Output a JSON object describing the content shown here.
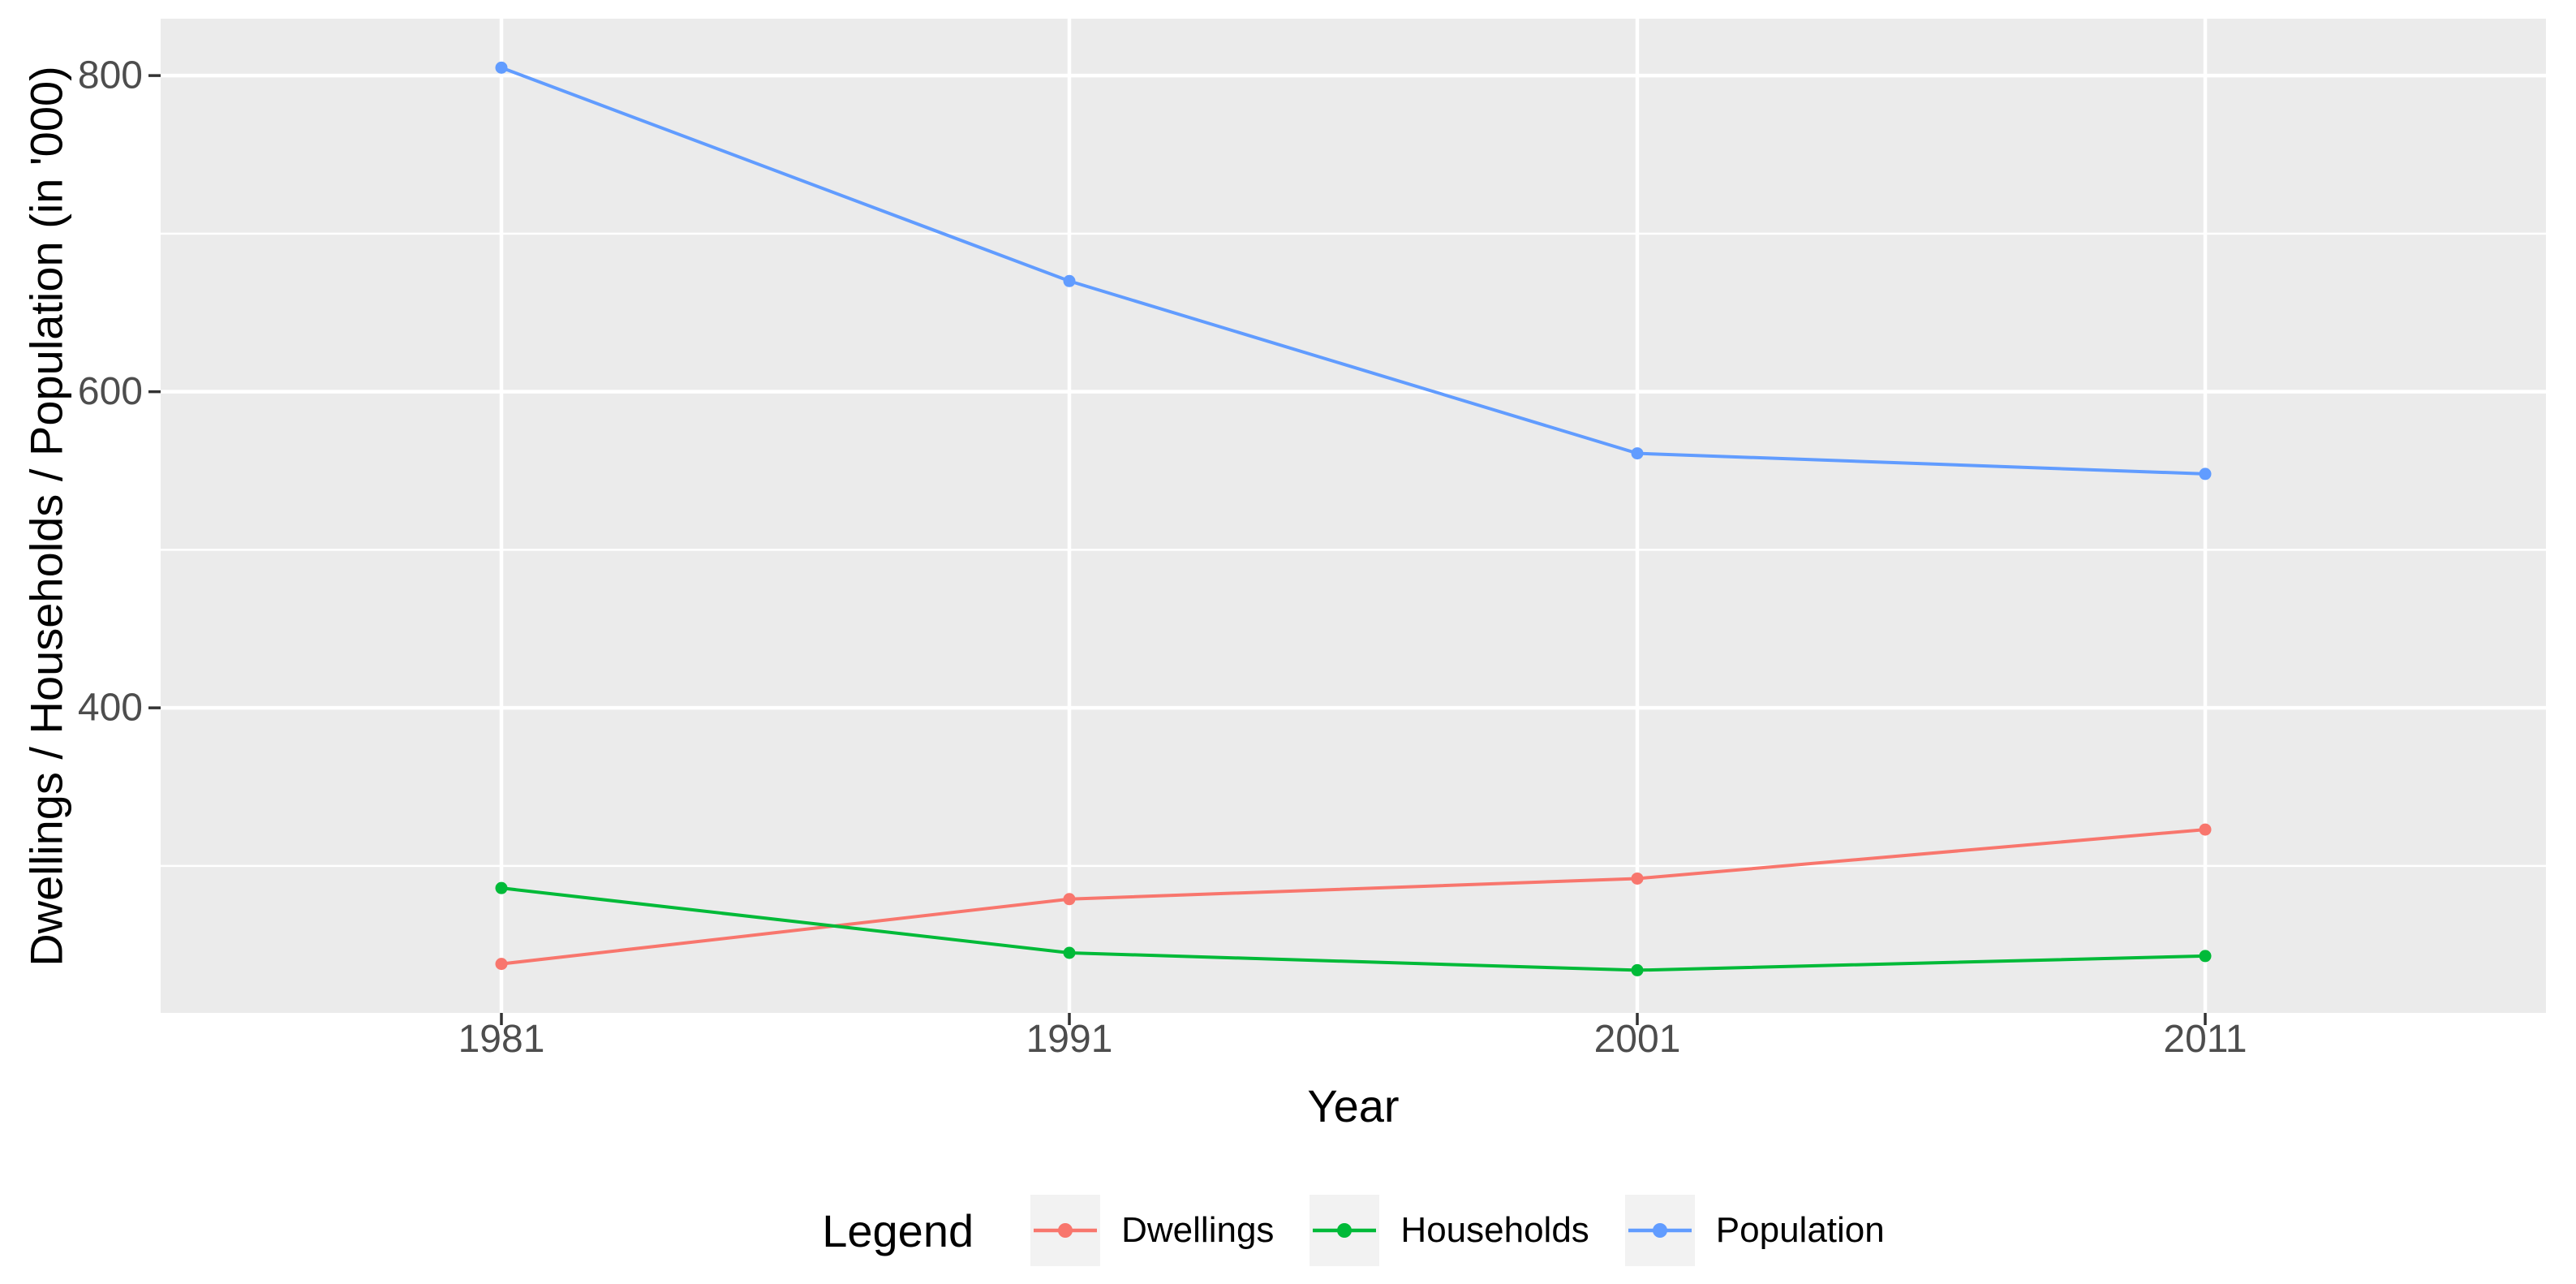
{
  "figure": {
    "y_axis_title": "Dwellings / Households / Population (in '000)",
    "x_axis_title": "Year"
  },
  "legend": {
    "title": "Legend",
    "items": [
      {
        "label": "Dwellings",
        "color": "#F8766D"
      },
      {
        "label": "Households",
        "color": "#00BA38"
      },
      {
        "label": "Population",
        "color": "#619CFF"
      }
    ]
  },
  "colors": {
    "panel_background": "#EBEBEB",
    "gridline": "#FFFFFF",
    "tick_mark": "#333333",
    "tick_text": "#4D4D4D",
    "legend_key_background": "#F2F2F2",
    "dwellings": "#F8766D",
    "households": "#00BA38",
    "population": "#619CFF"
  },
  "chart_data": {
    "type": "line",
    "title": "",
    "xlabel": "Year",
    "ylabel": "Dwellings / Households / Population (in '000)",
    "categories": [
      "1981",
      "1991",
      "2001",
      "2011"
    ],
    "series": [
      {
        "name": "Dwellings",
        "color": "#F8766D",
        "values": [
          238,
          279,
          292,
          323
        ]
      },
      {
        "name": "Households",
        "color": "#00BA38",
        "values": [
          286,
          245,
          234,
          243
        ]
      },
      {
        "name": "Population",
        "color": "#619CFF",
        "values": [
          805,
          670,
          561,
          548
        ]
      }
    ],
    "y_ticks": [
      400,
      600,
      800
    ],
    "y_minor_gridlines": [
      300,
      500,
      700
    ],
    "ylim": [
      207,
      836
    ],
    "grid": "on",
    "legend_position": "bottom"
  }
}
